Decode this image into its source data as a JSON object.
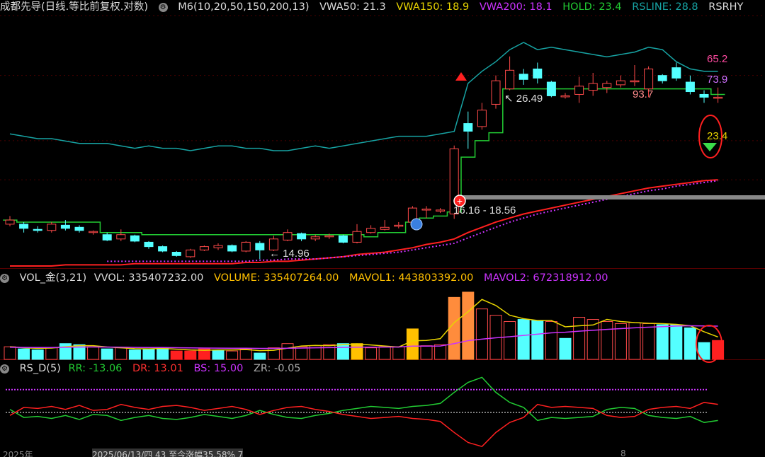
{
  "main_header": {
    "title": "成都先导(日线.等比前复权.对数)",
    "indicator": "M6(10,20,50,150,200,13)",
    "vwa50": "VWA50: 21.3",
    "vwa150": "VWA150: 18.9",
    "vwa200": "VWA200: 18.1",
    "hold": "HOLD: 23.4",
    "rsline": "RSLINE: 28.8",
    "rsrhy": "RSRHY"
  },
  "main_labels": {
    "rs_value_a": "65.2",
    "rs_value_b": "73.9",
    "hold_right": "23.4",
    "high_marker": "26.49",
    "low_marker": "14.96",
    "rs_peak": "93.7",
    "range_label": "16.16 - 18.56"
  },
  "vol_header": {
    "title": "VOL_金(3,21)",
    "vvol": "VVOL: 335407232.00",
    "volume": "VOLUME: 335407264.00",
    "mavol1": "MAVOL1: 443803392.00",
    "mavol2": "MAVOL2: 672318912.00"
  },
  "rs_header": {
    "title": "RS_D(5)",
    "rr": "RR: -13.06",
    "dr": "DR: 13.01",
    "bs": "BS: 15.00",
    "zr": "ZR: -0.05"
  },
  "footer": {
    "year": "2025年",
    "info": "2025/06/13/四 43 至今涨幅35.58% 7",
    "tick": "8"
  },
  "colors": {
    "up": "#ff4a4a",
    "down": "#54ffff",
    "hold": "#22cc33",
    "rsline": "#17a3a3",
    "vwa150": "#e8d400",
    "vwa200": "#cc33ff",
    "vwa50": "#ff2020",
    "vol_orange": "#ff8c3c",
    "vol_yellow": "#ffc000"
  },
  "chart_data": [
    {
      "type": "candlestick",
      "title": "成都先导(日线.等比前复权.对数)",
      "candles": [
        {
          "o": 15.9,
          "c": 16.1,
          "h": 16.3,
          "l": 15.8
        },
        {
          "o": 15.9,
          "c": 15.7,
          "h": 16.0,
          "l": 15.5
        },
        {
          "o": 15.65,
          "c": 15.6,
          "h": 15.8,
          "l": 15.5
        },
        {
          "o": 15.6,
          "c": 15.9,
          "h": 16.0,
          "l": 15.5
        },
        {
          "o": 15.85,
          "c": 15.7,
          "h": 16.1,
          "l": 15.6
        },
        {
          "o": 15.75,
          "c": 15.6,
          "h": 15.85,
          "l": 15.5
        },
        {
          "o": 15.5,
          "c": 15.55,
          "h": 15.6,
          "l": 15.4
        },
        {
          "o": 15.4,
          "c": 15.15,
          "h": 15.5,
          "l": 15.1
        },
        {
          "o": 15.2,
          "c": 15.4,
          "h": 15.65,
          "l": 15.1
        },
        {
          "o": 15.35,
          "c": 15.1,
          "h": 15.4,
          "l": 15.05
        },
        {
          "o": 15.05,
          "c": 14.85,
          "h": 15.1,
          "l": 14.75
        },
        {
          "o": 14.85,
          "c": 14.65,
          "h": 14.9,
          "l": 14.6
        },
        {
          "o": 14.6,
          "c": 14.45,
          "h": 14.65,
          "l": 14.4
        },
        {
          "o": 14.4,
          "c": 14.7,
          "h": 14.75,
          "l": 14.35
        },
        {
          "o": 14.7,
          "c": 14.85,
          "h": 14.9,
          "l": 14.65
        },
        {
          "o": 14.8,
          "c": 14.9,
          "h": 15.0,
          "l": 14.7
        },
        {
          "o": 14.9,
          "c": 14.65,
          "h": 14.95,
          "l": 14.6
        },
        {
          "o": 14.65,
          "c": 15.05,
          "h": 15.1,
          "l": 14.6
        },
        {
          "o": 15.0,
          "c": 14.7,
          "h": 15.1,
          "l": 14.3
        },
        {
          "o": 14.7,
          "c": 15.2,
          "h": 15.35,
          "l": 14.65
        },
        {
          "o": 15.15,
          "c": 15.5,
          "h": 15.65,
          "l": 15.1
        },
        {
          "o": 15.45,
          "c": 15.2,
          "h": 15.5,
          "l": 15.1
        },
        {
          "o": 15.2,
          "c": 15.3,
          "h": 15.4,
          "l": 15.1
        },
        {
          "o": 15.3,
          "c": 15.35,
          "h": 15.45,
          "l": 15.2
        },
        {
          "o": 15.35,
          "c": 15.05,
          "h": 15.4,
          "l": 15.0
        },
        {
          "o": 15.05,
          "c": 15.55,
          "h": 15.9,
          "l": 15.0
        },
        {
          "o": 15.5,
          "c": 15.7,
          "h": 15.85,
          "l": 15.45
        },
        {
          "o": 15.65,
          "c": 15.75,
          "h": 16.1,
          "l": 15.6
        },
        {
          "o": 15.8,
          "c": 15.85,
          "h": 16.0,
          "l": 15.7
        },
        {
          "o": 16.0,
          "c": 16.7,
          "h": 16.8,
          "l": 15.95
        },
        {
          "o": 16.6,
          "c": 16.65,
          "h": 16.8,
          "l": 16.2
        },
        {
          "o": 16.55,
          "c": 16.6,
          "h": 16.7,
          "l": 16.45
        },
        {
          "o": 16.4,
          "c": 20.0,
          "h": 20.2,
          "l": 16.16
        },
        {
          "o": 21.6,
          "c": 21.1,
          "h": 22.4,
          "l": 20.0
        },
        {
          "o": 21.4,
          "c": 22.5,
          "h": 23.0,
          "l": 21.2
        },
        {
          "o": 22.9,
          "c": 24.6,
          "h": 25.0,
          "l": 22.6
        },
        {
          "o": 24.0,
          "c": 25.4,
          "h": 26.49,
          "l": 23.9
        },
        {
          "o": 25.1,
          "c": 24.7,
          "h": 25.5,
          "l": 24.3
        },
        {
          "o": 25.5,
          "c": 24.8,
          "h": 26.0,
          "l": 24.4
        },
        {
          "o": 24.5,
          "c": 23.5,
          "h": 24.6,
          "l": 23.4
        },
        {
          "o": 23.5,
          "c": 23.5,
          "h": 23.7,
          "l": 23.3
        },
        {
          "o": 23.6,
          "c": 24.2,
          "h": 24.9,
          "l": 23.0
        },
        {
          "o": 23.9,
          "c": 24.4,
          "h": 25.2,
          "l": 23.5
        },
        {
          "o": 24.1,
          "c": 24.4,
          "h": 24.6,
          "l": 23.7
        },
        {
          "o": 24.3,
          "c": 24.6,
          "h": 25.0,
          "l": 24.1
        },
        {
          "o": 24.6,
          "c": 24.6,
          "h": 25.8,
          "l": 24.2
        },
        {
          "o": 24.0,
          "c": 25.5,
          "h": 25.7,
          "l": 23.4
        },
        {
          "o": 25.0,
          "c": 24.6,
          "h": 25.1,
          "l": 24.4
        },
        {
          "o": 25.6,
          "c": 24.8,
          "h": 26.0,
          "l": 24.6
        },
        {
          "o": 24.5,
          "c": 23.8,
          "h": 25.0,
          "l": 23.6
        },
        {
          "o": 23.6,
          "c": 23.4,
          "h": 23.9,
          "l": 23.0
        },
        {
          "o": 23.4,
          "c": 23.4,
          "h": 24.1,
          "l": 23.0
        }
      ],
      "hold_line": [
        16.1,
        16.0,
        16.0,
        16.0,
        16.0,
        16.0,
        16.0,
        15.5,
        15.5,
        15.5,
        15.4,
        15.4,
        15.4,
        15.4,
        15.4,
        15.4,
        15.4,
        15.4,
        15.4,
        15.4,
        15.4,
        15.4,
        15.4,
        15.4,
        15.4,
        15.4,
        15.3,
        15.5,
        15.5,
        16.0,
        16.2,
        16.3,
        16.5,
        19.5,
        20.5,
        21.0,
        24.0,
        24.0,
        24.0,
        24.0,
        24.0,
        24.0,
        24.0,
        24.0,
        24.0,
        24.0,
        24.0,
        24.0,
        24.0,
        24.0,
        24.0,
        23.6
      ],
      "vwa50_line": [
        14.0,
        14.0,
        14.0,
        14.0,
        14.05,
        14.05,
        14.05,
        14.05,
        14.05,
        14.1,
        14.1,
        14.1,
        14.1,
        14.1,
        14.1,
        14.1,
        14.1,
        14.15,
        14.15,
        14.2,
        14.2,
        14.25,
        14.3,
        14.35,
        14.4,
        14.5,
        14.55,
        14.6,
        14.7,
        14.8,
        14.95,
        15.05,
        15.2,
        15.5,
        15.75,
        16.0,
        16.2,
        16.4,
        16.55,
        16.7,
        16.85,
        17.0,
        17.15,
        17.3,
        17.45,
        17.6,
        17.75,
        17.85,
        17.95,
        18.05,
        18.15,
        18.2
      ],
      "vwa150_line": [
        null,
        null,
        null,
        null,
        null,
        null,
        null,
        14.2,
        14.2,
        14.2,
        14.2,
        14.2,
        14.2,
        14.2,
        14.2,
        14.2,
        14.2,
        14.2,
        14.25,
        14.25,
        14.3,
        14.3,
        14.3,
        14.35,
        14.4,
        14.45,
        14.5,
        14.55,
        14.6,
        14.7,
        14.8,
        14.9,
        15.0,
        15.25,
        15.5,
        15.75,
        16.0,
        16.2,
        16.4,
        16.55,
        16.7,
        16.85,
        17.0,
        17.15,
        17.3,
        17.45,
        17.6,
        17.7,
        17.85,
        17.95,
        18.05,
        18.15
      ],
      "rsline_values": [
        62,
        61,
        60,
        60,
        59,
        58,
        58,
        58,
        57,
        56,
        57,
        56,
        56,
        55,
        56,
        57,
        57,
        56,
        56,
        55,
        55,
        56,
        57,
        56,
        57,
        58,
        59,
        60,
        61,
        61,
        61,
        62,
        63,
        83,
        88,
        92,
        97,
        100,
        97,
        98,
        97,
        96,
        95,
        94,
        95,
        96,
        98,
        97,
        92,
        89,
        88,
        88
      ],
      "ylim": [
        14.0,
        30.0
      ],
      "scale": "log",
      "annotations": {
        "high": "26.49",
        "low": "14.96",
        "range": "16.16 - 18.56",
        "rs": "93.7"
      }
    },
    {
      "type": "bar",
      "title": "VOL_金(3,21)",
      "values": [
        120,
        100,
        90,
        110,
        150,
        140,
        120,
        100,
        110,
        90,
        100,
        110,
        80,
        80,
        100,
        90,
        80,
        100,
        60,
        110,
        150,
        120,
        130,
        140,
        150,
        150,
        110,
        120,
        120,
        290,
        130,
        140,
        590,
        640,
        480,
        420,
        360,
        380,
        370,
        360,
        200,
        400,
        380,
        360,
        340,
        350,
        340,
        330,
        330,
        300,
        160,
        180
      ],
      "colors": [
        "up",
        "down",
        "down",
        "up",
        "down",
        "down",
        "up",
        "down",
        "up",
        "down",
        "down",
        "down",
        "red_fill",
        "red_fill",
        "red_fill",
        "down",
        "up",
        "up",
        "down",
        "up",
        "up",
        "up",
        "up",
        "up",
        "down",
        "yellow",
        "up",
        "up",
        "up",
        "yellow",
        "up",
        "up",
        "orange",
        "orange",
        "up",
        "up",
        "up",
        "down",
        "down",
        "up",
        "down",
        "up",
        "up",
        "up",
        "up",
        "up",
        "up",
        "down",
        "down",
        "down",
        "down",
        "red_fill"
      ],
      "mavol1": [
        120,
        110,
        105,
        108,
        120,
        130,
        130,
        118,
        110,
        102,
        100,
        104,
        97,
        90,
        87,
        90,
        90,
        93,
        83,
        87,
        107,
        127,
        133,
        130,
        140,
        147,
        137,
        127,
        117,
        177,
        180,
        197,
        350,
        453,
        570,
        513,
        420,
        387,
        370,
        370,
        310,
        320,
        327,
        380,
        360,
        350,
        343,
        340,
        333,
        320,
        263,
        213
      ],
      "mavol2": [
        115,
        114,
        113,
        113,
        115,
        117,
        118,
        117,
        116,
        114,
        113,
        113,
        111,
        109,
        108,
        107,
        106,
        106,
        104,
        104,
        106,
        108,
        110,
        112,
        114,
        116,
        116,
        117,
        118,
        126,
        126,
        127,
        150,
        178,
        193,
        205,
        215,
        228,
        240,
        252,
        258,
        268,
        277,
        285,
        293,
        300,
        306,
        311,
        317,
        320,
        318,
        316
      ],
      "ylim": [
        0,
        700
      ]
    },
    {
      "type": "line",
      "title": "RS_D(5)",
      "series": [
        {
          "name": "RR",
          "values": [
            3,
            -5,
            -4,
            -6,
            -3,
            -7,
            -2,
            -3,
            -8,
            -5,
            -3,
            -6,
            -7,
            -5,
            -2,
            -4,
            -6,
            -3,
            2,
            -2,
            -5,
            -6,
            -3,
            -1,
            2,
            4,
            6,
            5,
            4,
            6,
            7,
            9,
            20,
            30,
            35,
            20,
            10,
            5,
            -8,
            -5,
            -6,
            -5,
            -4,
            3,
            5,
            4,
            -3,
            -5,
            -6,
            -4,
            -10,
            -8
          ]
        },
        {
          "name": "DR",
          "values": [
            -3,
            5,
            4,
            6,
            3,
            7,
            2,
            3,
            8,
            5,
            3,
            6,
            7,
            5,
            2,
            4,
            6,
            3,
            -2,
            2,
            5,
            6,
            3,
            1,
            -2,
            -4,
            -6,
            -5,
            -4,
            -6,
            -7,
            -9,
            -20,
            -30,
            -34,
            -20,
            -10,
            -5,
            8,
            5,
            6,
            5,
            4,
            -3,
            -5,
            -4,
            3,
            5,
            6,
            4,
            10,
            8
          ]
        },
        {
          "name": "BS",
          "values": [
            15,
            15,
            15,
            15,
            15,
            15,
            15,
            15,
            15,
            15,
            15,
            15,
            15,
            15,
            15,
            15,
            15,
            15,
            15,
            15,
            15,
            15,
            15,
            15,
            15,
            15,
            15,
            15,
            15,
            15,
            15,
            15,
            15,
            15,
            15,
            15,
            15,
            15,
            15,
            15,
            15,
            15,
            15,
            15,
            15,
            15,
            15,
            15,
            15,
            15,
            15,
            15
          ]
        },
        {
          "name": "ZR",
          "values": [
            0,
            0,
            0,
            0,
            0,
            0,
            0,
            0,
            0,
            0,
            0,
            0,
            0,
            0,
            0,
            0,
            0,
            0,
            0,
            0,
            0,
            0,
            0,
            0,
            0,
            0,
            0,
            0,
            0,
            0,
            0,
            0,
            0,
            0,
            0,
            0,
            0,
            0,
            0,
            0,
            0,
            0,
            0,
            0,
            0,
            0,
            0,
            0,
            0,
            0,
            0,
            0
          ]
        }
      ],
      "ylim": [
        -36,
        36
      ]
    }
  ]
}
